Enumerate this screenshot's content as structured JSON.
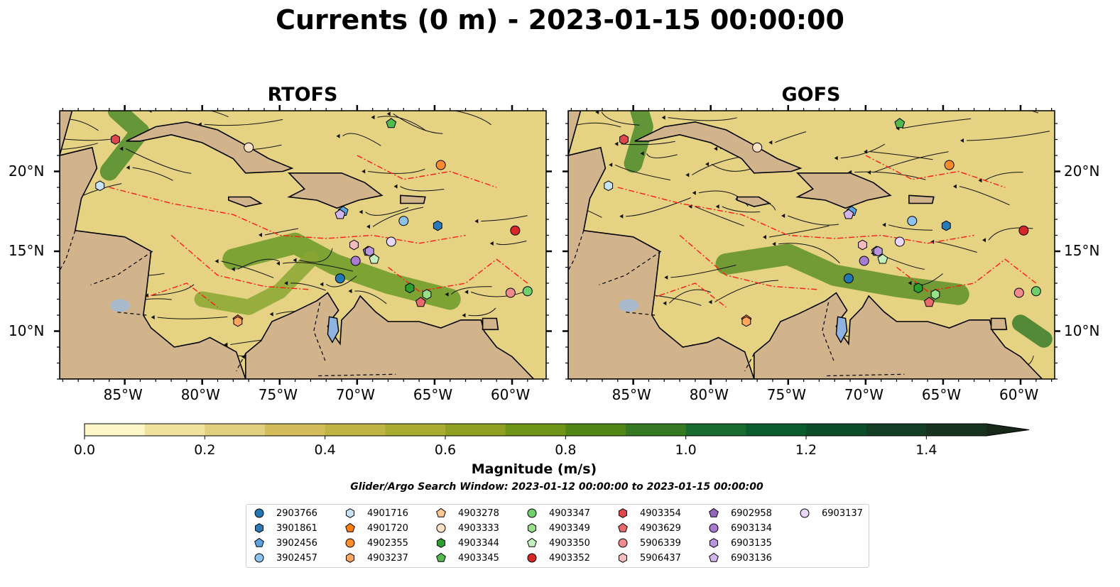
{
  "chart_data": {
    "type": "map",
    "title": "Currents (0 m) - 2023-01-15 00:00:00",
    "panels": [
      {
        "title": "RTOFS"
      },
      {
        "title": "GOFS"
      }
    ],
    "x_ticks": [
      "85°W",
      "80°W",
      "75°W",
      "70°W",
      "65°W",
      "60°W"
    ],
    "x_tick_values": [
      -85,
      -80,
      -75,
      -70,
      -65,
      -60
    ],
    "y_ticks": [
      "20°N",
      "15°N",
      "10°N"
    ],
    "y_tick_values": [
      20,
      15,
      10
    ],
    "xlim": [
      -89.2,
      -57.8
    ],
    "ylim": [
      7,
      23.8
    ],
    "colorbar": {
      "label": "Magnitude (m/s)",
      "ticks": [
        "0.0",
        "0.2",
        "0.4",
        "0.6",
        "0.8",
        "1.0",
        "1.2",
        "1.4"
      ],
      "tick_values": [
        0,
        0.2,
        0.4,
        0.6,
        0.8,
        1.0,
        1.2,
        1.4
      ],
      "range": [
        0,
        1.5
      ],
      "extend": "max",
      "colors": [
        "#fef8c8",
        "#f0e3a0",
        "#e2d07e",
        "#d3bd5a",
        "#bfb444",
        "#a9ad32",
        "#8fa022",
        "#709418",
        "#528616",
        "#357a22",
        "#1a6b30",
        "#0d5c30",
        "#0c4d2a",
        "#123f24",
        "#17321d"
      ]
    },
    "search_window": "Glider/Argo Search Window: 2023-01-12 00:00:00 to 2023-01-15 00:00:00",
    "legend": [
      {
        "label": "2903766",
        "marker": "circle",
        "color": "#1f77b4"
      },
      {
        "label": "3901861",
        "marker": "hexagon",
        "color": "#2a7ab8"
      },
      {
        "label": "3902456",
        "marker": "pentagon",
        "color": "#5ba3e0"
      },
      {
        "label": "3902457",
        "marker": "circle",
        "color": "#8ec1ec"
      },
      {
        "label": "4901716",
        "marker": "hexagon",
        "color": "#c6e3f7"
      },
      {
        "label": "4901720",
        "marker": "pentagon",
        "color": "#ff7f0e"
      },
      {
        "label": "4902355",
        "marker": "circle",
        "color": "#ff8c2a"
      },
      {
        "label": "4903237",
        "marker": "hexagon",
        "color": "#ffa65c"
      },
      {
        "label": "4903278",
        "marker": "pentagon",
        "color": "#ffc895"
      },
      {
        "label": "4903333",
        "marker": "circle",
        "color": "#ffe2c6"
      },
      {
        "label": "4903344",
        "marker": "hexagon",
        "color": "#2ca02c"
      },
      {
        "label": "4903345",
        "marker": "pentagon",
        "color": "#52bb4f"
      },
      {
        "label": "4903347",
        "marker": "circle",
        "color": "#6fcf6a"
      },
      {
        "label": "4903349",
        "marker": "hexagon",
        "color": "#98df8a"
      },
      {
        "label": "4903350",
        "marker": "pentagon",
        "color": "#c4f2bc"
      },
      {
        "label": "4903352",
        "marker": "circle",
        "color": "#d62728"
      },
      {
        "label": "4903354",
        "marker": "hexagon",
        "color": "#e0474a"
      },
      {
        "label": "4903629",
        "marker": "pentagon",
        "color": "#e86a6c"
      },
      {
        "label": "5906339",
        "marker": "circle",
        "color": "#f08a8c"
      },
      {
        "label": "5906437",
        "marker": "hexagon",
        "color": "#f6bcbc"
      },
      {
        "label": "6902958",
        "marker": "pentagon",
        "color": "#9467bd"
      },
      {
        "label": "6903134",
        "marker": "circle",
        "color": "#a87bd0"
      },
      {
        "label": "6903135",
        "marker": "hexagon",
        "color": "#b896de"
      },
      {
        "label": "6903136",
        "marker": "pentagon",
        "color": "#d0b6ec"
      },
      {
        "label": "6903137",
        "marker": "circle",
        "color": "#e8d6f8"
      }
    ],
    "floats": [
      {
        "label": "2903766",
        "lon": -71.1,
        "lat": 13.3
      },
      {
        "label": "3901861",
        "lon": -64.8,
        "lat": 16.6
      },
      {
        "label": "3902456",
        "lon": -70.9,
        "lat": 17.5
      },
      {
        "label": "3902457",
        "lon": -67.0,
        "lat": 16.9
      },
      {
        "label": "4901716",
        "lon": -86.6,
        "lat": 19.1
      },
      {
        "label": "4901720",
        "lon": -77.7,
        "lat": 10.7
      },
      {
        "label": "4902355",
        "lon": -64.6,
        "lat": 20.4
      },
      {
        "label": "4903237",
        "lon": -77.7,
        "lat": 10.6
      },
      {
        "label": "4903278",
        "lon": -71.1,
        "lat": 17.3
      },
      {
        "label": "4903333",
        "lon": -77.0,
        "lat": 21.5
      },
      {
        "label": "4903344",
        "lon": -66.6,
        "lat": 12.7
      },
      {
        "label": "4903345",
        "lon": -67.8,
        "lat": 23.0
      },
      {
        "label": "4903347",
        "lon": -59.0,
        "lat": 12.5
      },
      {
        "label": "4903349",
        "lon": -65.5,
        "lat": 12.3
      },
      {
        "label": "4903350",
        "lon": -68.9,
        "lat": 14.5
      },
      {
        "label": "4903352",
        "lon": -59.8,
        "lat": 16.3
      },
      {
        "label": "4903354",
        "lon": -85.6,
        "lat": 22.0
      },
      {
        "label": "4903629",
        "lon": -65.9,
        "lat": 11.8
      },
      {
        "label": "5906339",
        "lon": -60.1,
        "lat": 12.4
      },
      {
        "label": "5906437",
        "lon": -70.2,
        "lat": 15.4
      },
      {
        "label": "6902958",
        "lon": -69.3,
        "lat": 15.0
      },
      {
        "label": "6903134",
        "lon": -70.1,
        "lat": 14.4
      },
      {
        "label": "6903135",
        "lon": -69.2,
        "lat": 15.0
      },
      {
        "label": "6903136",
        "lon": -71.1,
        "lat": 17.3
      },
      {
        "label": "6903137",
        "lon": -67.8,
        "lat": 15.6
      }
    ]
  }
}
